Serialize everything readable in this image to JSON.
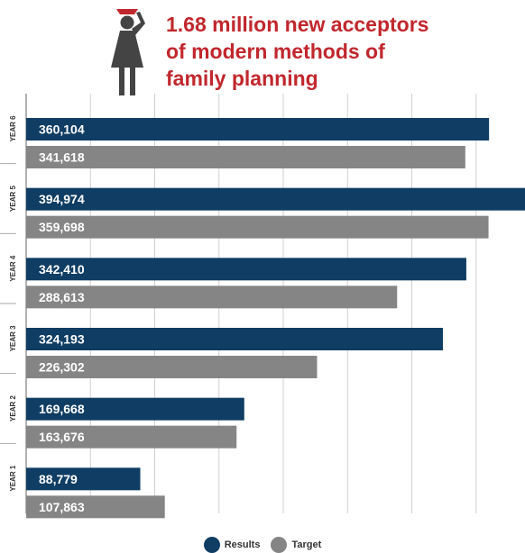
{
  "headline": {
    "lines": [
      "1.68 million new acceptors",
      "of modern methods of",
      "family planning"
    ]
  },
  "icon": "woman-figure-icon",
  "colors": {
    "headline": "#c1272d",
    "results": "#0f3d63",
    "target": "#858585",
    "grid": "#cfcfcf",
    "icon": "#444444",
    "icon_accent": "#c1272d"
  },
  "chart_data": {
    "type": "bar",
    "orientation": "horizontal",
    "categories": [
      "YEAR 6",
      "YEAR 5",
      "YEAR 4",
      "YEAR 3",
      "YEAR 2",
      "YEAR 1"
    ],
    "series": [
      {
        "name": "Results",
        "values": [
          360104,
          394974,
          342410,
          324193,
          169668,
          88779
        ],
        "labels": [
          "360,104",
          "394,974",
          "342,410",
          "324,193",
          "169,668",
          "88,779"
        ]
      },
      {
        "name": "Target",
        "values": [
          341618,
          359698,
          288613,
          226302,
          163676,
          107863
        ],
        "labels": [
          "341,618",
          "359,698",
          "288,613",
          "226,302",
          "163,676",
          "107,863"
        ]
      }
    ],
    "xlim": [
      0,
      400000
    ],
    "grid": true,
    "legend_position": "bottom"
  }
}
